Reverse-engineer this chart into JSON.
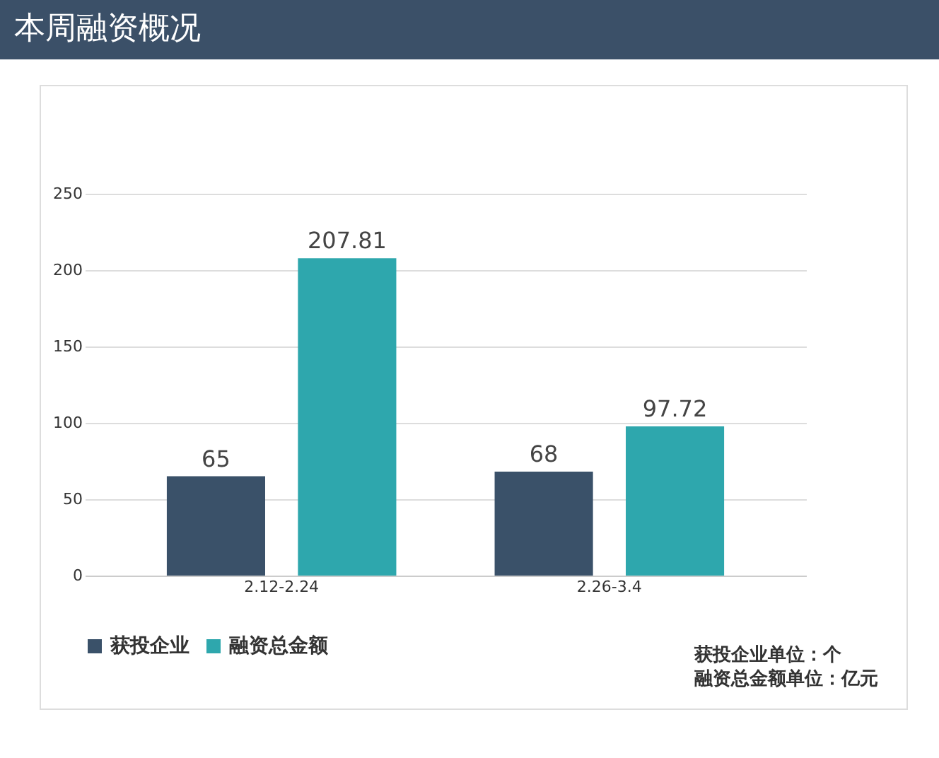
{
  "chart_data": {
    "type": "bar",
    "title": "本周融资概况",
    "categories": [
      "2.12-2.24",
      "2.26-3.4"
    ],
    "series": [
      {
        "name": "获投企业",
        "color": "#3a5169",
        "values": [
          65,
          68
        ]
      },
      {
        "name": "融资总金额",
        "color": "#2ea7ad",
        "values": [
          207.81,
          97.72
        ]
      }
    ],
    "ylim": [
      0,
      250
    ],
    "yticks": [
      0,
      50,
      100,
      150,
      200,
      250
    ],
    "grid": "y",
    "data_labels": true,
    "legend": "bottom",
    "annotations": [
      "获投企业单位：个",
      "融资总金额单位：亿元"
    ]
  }
}
